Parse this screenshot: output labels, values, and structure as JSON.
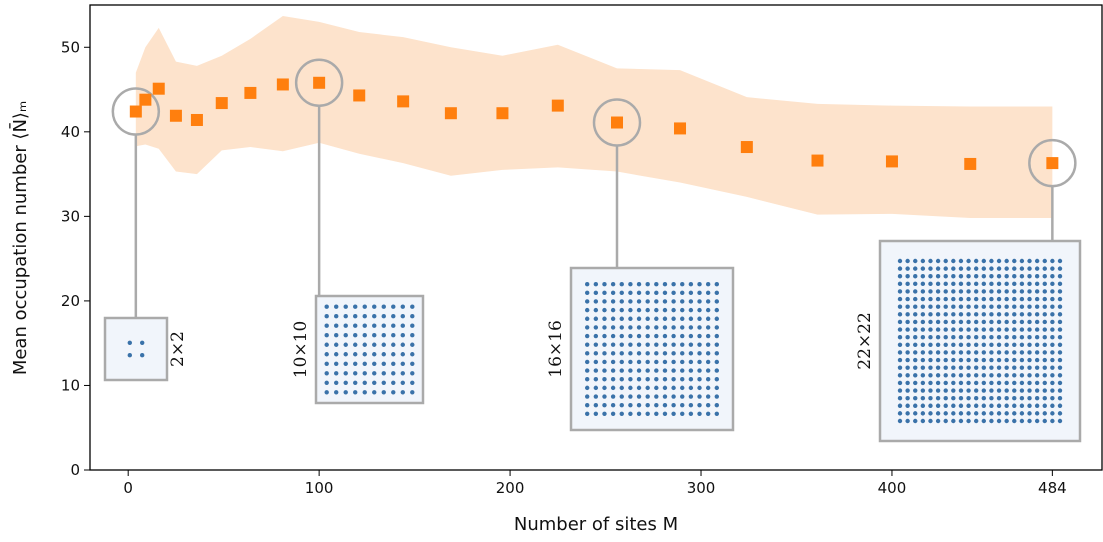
{
  "chart_data": {
    "type": "scatter",
    "x_label": "Number of sites M",
    "y_label": "Mean occupation number ⟨N̄⟩ₘ",
    "x": [
      4,
      9,
      16,
      25,
      36,
      49,
      64,
      81,
      100,
      121,
      144,
      169,
      196,
      225,
      256,
      289,
      324,
      361,
      400,
      441,
      484
    ],
    "series": [
      {
        "color": "#ff7f0e",
        "values": [
          42.4,
          43.8,
          45.1,
          41.9,
          41.4,
          43.4,
          44.6,
          45.6,
          45.8,
          44.3,
          43.6,
          42.2,
          42.2,
          43.1,
          41.1,
          40.4,
          38.2,
          36.6,
          36.5,
          36.2,
          36.3
        ]
      }
    ],
    "band": {
      "color": "#fde3cc",
      "upper": [
        47,
        50,
        52.3,
        48.3,
        47.8,
        49,
        51,
        53.7,
        53,
        51.8,
        51.2,
        50,
        49,
        50.3,
        47.5,
        47.3,
        44.1,
        43.3,
        43.1,
        43,
        43
      ],
      "lower": [
        38.3,
        38.5,
        38,
        35.3,
        35,
        37.8,
        38.2,
        37.7,
        38.7,
        37.4,
        36.3,
        34.8,
        35.5,
        35.8,
        35.3,
        34,
        32.3,
        30.2,
        30.3,
        29.8,
        29.8
      ]
    },
    "annotations": [
      {
        "text": "2×2",
        "x": 4
      },
      {
        "text": "10×10",
        "x": 100
      },
      {
        "text": "16×16",
        "x": 256
      },
      {
        "text": "22×22",
        "x": 484
      }
    ],
    "xlim": [
      -20,
      510
    ],
    "ylim": [
      0,
      55
    ],
    "xticks": [
      0,
      100,
      200,
      300,
      400,
      484
    ],
    "yticks": [
      0,
      10,
      20,
      30,
      40,
      50
    ]
  }
}
